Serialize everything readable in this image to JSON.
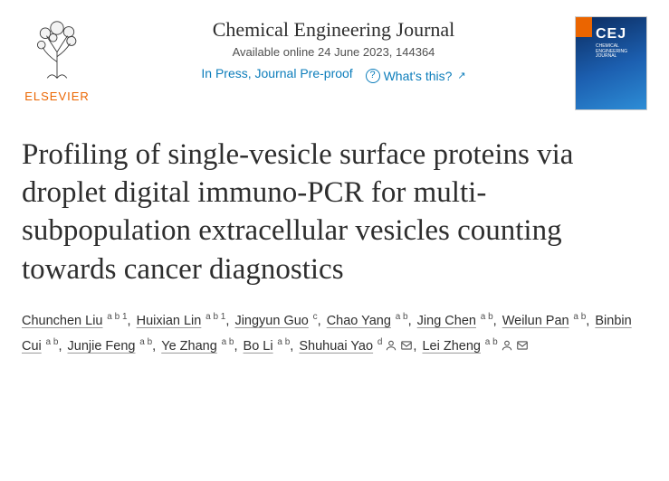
{
  "publisher": {
    "wordmark": "ELSEVIER",
    "logo_color": "#eb6500"
  },
  "journal": {
    "name": "Chemical Engineering Journal",
    "availability": "Available online 24 June 2023, 144364",
    "status": "In Press, Journal Pre-proof",
    "help_label": "What's this?",
    "cover": {
      "abbrev": "CEJ",
      "subtitle": "CHEMICAL ENGINEERING JOURNAL",
      "gradient_from": "#0b2b5e",
      "gradient_to": "#2d8dd6",
      "tab_color": "#eb6500"
    }
  },
  "article": {
    "title": "Profiling of single-vesicle surface proteins via droplet digital immuno-PCR for multi-subpopulation extracellular vesicles counting towards cancer diagnostics"
  },
  "authors": [
    {
      "name": "Chunchen Liu",
      "affils": "a b 1"
    },
    {
      "name": "Huixian Lin",
      "affils": "a b 1"
    },
    {
      "name": "Jingyun Guo",
      "affils": "c"
    },
    {
      "name": "Chao Yang",
      "affils": "a b"
    },
    {
      "name": "Jing Chen",
      "affils": "a b"
    },
    {
      "name": "Weilun Pan",
      "affils": "a b"
    },
    {
      "name": "Binbin Cui",
      "affils": "a b"
    },
    {
      "name": "Junjie Feng",
      "affils": "a b"
    },
    {
      "name": "Ye Zhang",
      "affils": "a b"
    },
    {
      "name": "Bo Li",
      "affils": "a b"
    },
    {
      "name": "Shuhuai Yao",
      "affils": "d",
      "orcid": true,
      "email": true
    },
    {
      "name": "Lei Zheng",
      "affils": "a b",
      "orcid": true,
      "email": true
    }
  ],
  "style": {
    "body_width": 739,
    "title_fontsize": 33,
    "title_lineheight": 1.28,
    "journal_fontsize": 22,
    "author_fontsize": 14.5,
    "link_color": "#0c7dbb",
    "text_color": "#2e2e2e",
    "muted_color": "#505050",
    "underline_color": "#9a9a9a",
    "background": "#ffffff"
  }
}
